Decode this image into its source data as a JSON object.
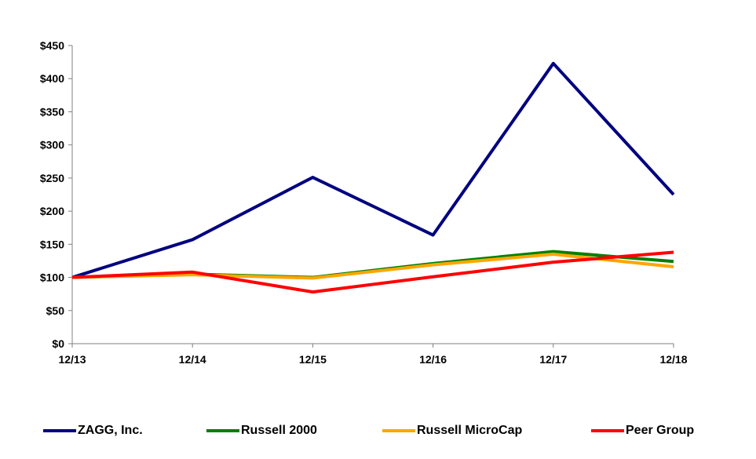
{
  "chart_data": {
    "type": "line",
    "title": "",
    "xlabel": "",
    "ylabel": "",
    "categories": [
      "12/13",
      "12/14",
      "12/15",
      "12/16",
      "12/17",
      "12/18"
    ],
    "ylim": [
      0,
      450
    ],
    "yticks": [
      0,
      50,
      100,
      150,
      200,
      250,
      300,
      350,
      400,
      450
    ],
    "ytick_labels": [
      "$0",
      "$50",
      "$100",
      "$150",
      "$200",
      "$250",
      "$300",
      "$350",
      "$400",
      "$450"
    ],
    "grid": false,
    "legend_position": "bottom",
    "series": [
      {
        "name": "ZAGG, Inc.",
        "color": "#000080",
        "values": [
          100,
          157,
          251,
          164,
          423,
          225
        ]
      },
      {
        "name": "Russell 2000",
        "color": "#008000",
        "values": [
          100,
          105,
          100,
          121,
          139,
          124
        ]
      },
      {
        "name": "Russell MicroCap",
        "color": "#FFA500",
        "values": [
          100,
          104,
          99,
          119,
          135,
          116
        ]
      },
      {
        "name": "Peer Group",
        "color": "#FF0000",
        "values": [
          100,
          108,
          78,
          101,
          123,
          138
        ]
      }
    ]
  }
}
